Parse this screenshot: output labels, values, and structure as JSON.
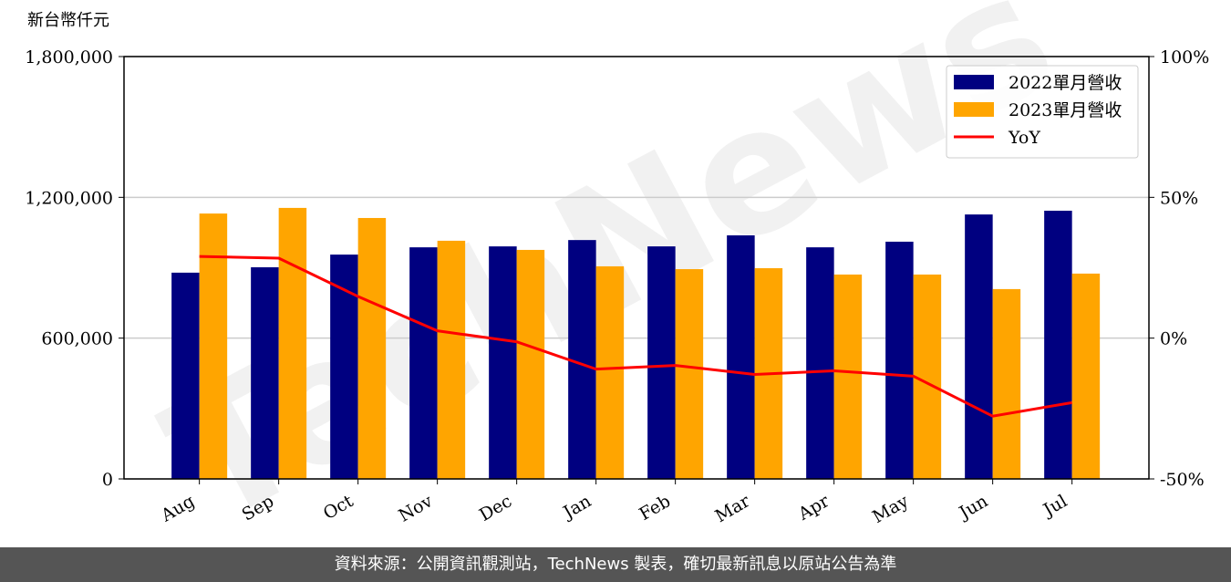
{
  "chart_data": {
    "type": "bar",
    "y_label": "新台幣仟元",
    "watermark": "TechNews",
    "categories": [
      "Aug",
      "Sep",
      "Oct",
      "Nov",
      "Dec",
      "Jan",
      "Feb",
      "Mar",
      "Apr",
      "May",
      "Jun",
      "Jul"
    ],
    "series": [
      {
        "name": "2022單月營收",
        "color": "#000080",
        "values": [
          879000,
          902000,
          956000,
          987000,
          991000,
          1018000,
          991000,
          1038000,
          987000,
          1011000,
          1127000,
          1143000
        ]
      },
      {
        "name": "2023單月營收",
        "color": "#ffa500",
        "values": [
          1131000,
          1155000,
          1112000,
          1015000,
          976000,
          906000,
          894000,
          898000,
          871000,
          871000,
          809000,
          875000
        ]
      },
      {
        "name": "YoY",
        "type": "line",
        "axis": "y2",
        "color": "#ff0000",
        "values": [
          29.0,
          28.4,
          14.8,
          2.6,
          -1.3,
          -11.0,
          -9.7,
          -12.9,
          -11.6,
          -13.5,
          -27.7,
          -22.9
        ]
      }
    ],
    "ylim": [
      0,
      1800000
    ],
    "yticks": [
      0,
      {
        "value": 600000,
        "label": "600,000"
      },
      {
        "value": 1200000,
        "label": "1,200,000"
      },
      {
        "value": 1800000,
        "label": "1,800,000"
      }
    ],
    "y2lim": [
      -50,
      100
    ],
    "y2ticks": [
      {
        "value": -50,
        "label": "-50%"
      },
      {
        "value": 0,
        "label": "0%"
      },
      {
        "value": 50,
        "label": "50%"
      },
      {
        "value": 100,
        "label": "100%"
      }
    ],
    "grid": true,
    "legend": "upper right"
  },
  "footer": "資料來源：公開資訊觀測站，TechNews 製表，確切最新訊息以原站公告為準"
}
